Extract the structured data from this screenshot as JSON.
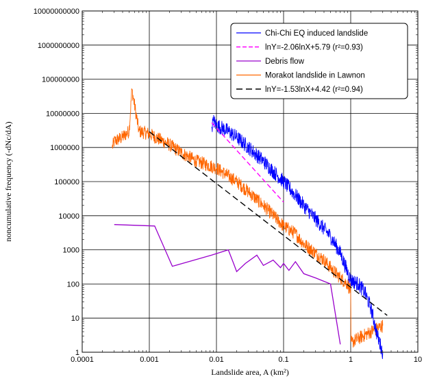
{
  "chart_data": {
    "type": "line",
    "xlabel": "Landslide area, A (km²)",
    "ylabel": "noncumulative frequency (-dNc/dA)",
    "x_scale": "log",
    "y_scale": "log",
    "xlim": [
      0.0001,
      10
    ],
    "ylim": [
      1,
      10000000000
    ],
    "x_tick_labels": [
      "0.0001",
      "0.001",
      "0.01",
      "0.1",
      "1",
      "10"
    ],
    "y_tick_labels": [
      "1",
      "10",
      "100",
      "1000",
      "10000",
      "100000",
      "1000000",
      "10000000",
      "100000000",
      "1000000000",
      "10000000000"
    ],
    "grid": true,
    "legend_position": "top-right",
    "series": [
      {
        "name": "Chi-Chi EQ induced landslide",
        "color": "#0000ff",
        "style": "noisy-line",
        "x": [
          0.0085,
          0.009,
          0.01,
          0.015,
          0.02,
          0.03,
          0.05,
          0.07,
          0.1,
          0.15,
          0.2,
          0.3,
          0.5,
          0.7,
          1.0,
          1.3,
          1.6,
          2.0,
          2.5,
          3.0
        ],
        "y": [
          4000000,
          6000000,
          4500000,
          3000000,
          2000000,
          1000000,
          400000,
          200000,
          100000,
          40000,
          20000,
          8000,
          2500,
          800,
          130,
          100,
          60,
          20,
          3,
          1
        ]
      },
      {
        "name": "lnY=-2.06lnX+5.79 (r²=0.93)",
        "color": "#ff00ff",
        "style": "dashed",
        "x": [
          0.0085,
          0.1
        ],
        "y": [
          5300000,
          25000
        ]
      },
      {
        "name": "Debris flow",
        "color": "#9900cc",
        "style": "line",
        "x": [
          0.0003,
          0.0012,
          0.0022,
          0.0085,
          0.015,
          0.018,
          0.02,
          0.027,
          0.04,
          0.05,
          0.07,
          0.09,
          0.1,
          0.12,
          0.15,
          0.2,
          0.3,
          0.5,
          0.7
        ],
        "y": [
          5500,
          5000,
          330,
          700,
          1000,
          400,
          230,
          400,
          700,
          350,
          500,
          300,
          400,
          250,
          450,
          200,
          150,
          100,
          1.7
        ]
      },
      {
        "name": "Morakot landslide in Lawnon",
        "color": "#ff6600",
        "style": "noisy-line",
        "x": [
          0.00028,
          0.0003,
          0.0004,
          0.0005,
          0.00055,
          0.0007,
          0.001,
          0.002,
          0.003,
          0.005,
          0.01,
          0.02,
          0.03,
          0.05,
          0.1,
          0.15,
          0.2,
          0.3,
          0.4,
          0.5,
          0.7,
          0.9,
          1.0,
          1.01,
          1.05,
          2.0,
          3.0
        ],
        "y": [
          1000000,
          1500000,
          2000000,
          3000000,
          50000000,
          3000000,
          2500000,
          1200000,
          700000,
          400000,
          250000,
          100000,
          50000,
          20000,
          5000,
          3000,
          1500,
          800,
          500,
          300,
          150,
          100,
          60,
          2,
          2,
          4,
          6
        ]
      },
      {
        "name": "lnY=-1.53lnX+4.42  (r²=0.94)",
        "color": "#000000",
        "style": "dashed",
        "x": [
          0.001,
          3.5
        ],
        "y": [
          2900000,
          12
        ]
      }
    ]
  }
}
